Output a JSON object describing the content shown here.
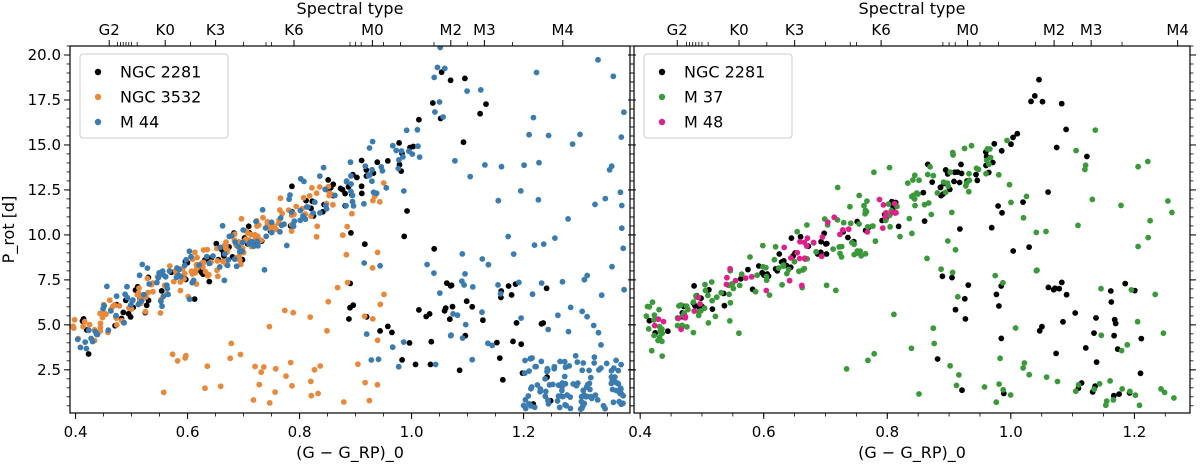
{
  "chart_data": [
    {
      "type": "scatter",
      "panel": "left",
      "xlabel": "(G − G_RP)_0",
      "ylabel": "P_rot [d]",
      "top_axis_label": "Spectral type",
      "xlim": [
        0.39,
        1.39
      ],
      "ylim": [
        0.1,
        20.5
      ],
      "x_ticks": [
        "0.4",
        "0.6",
        "0.8",
        "1.0",
        "1.2"
      ],
      "y_ticks": [
        "2.5",
        "5.0",
        "7.5",
        "10.0",
        "12.5",
        "15.0",
        "17.5",
        "20.0"
      ],
      "spectral_ticks": [
        {
          "label": "G2",
          "x": 0.46
        },
        {
          "label": "K0",
          "x": 0.56
        },
        {
          "label": "K3",
          "x": 0.65
        },
        {
          "label": "K6",
          "x": 0.79
        },
        {
          "label": "M0",
          "x": 0.93
        },
        {
          "label": "M2",
          "x": 1.07
        },
        {
          "label": "M3",
          "x": 1.13
        },
        {
          "label": "M4",
          "x": 1.27
        }
      ],
      "spectral_minor": [
        0.475,
        0.48,
        0.485,
        0.49,
        0.495,
        0.5,
        0.51,
        0.605,
        0.7,
        0.74,
        0.75,
        0.89,
        0.9,
        0.91,
        0.95,
        0.98,
        1.04,
        1.1,
        1.18
      ],
      "legend": "top-left",
      "series": [
        {
          "name": "NGC 2281",
          "color": "#000000"
        },
        {
          "name": "NGC 3532",
          "color": "#e8883a"
        },
        {
          "name": "M 44",
          "color": "#3a7bb0"
        }
      ]
    },
    {
      "type": "scatter",
      "panel": "right",
      "xlabel": "(G − G_RP)_0",
      "ylabel": "",
      "top_axis_label": "Spectral type",
      "xlim": [
        0.39,
        1.29
      ],
      "ylim": [
        0.1,
        20.5
      ],
      "x_ticks": [
        "0.4",
        "0.6",
        "0.8",
        "1.0",
        "1.2"
      ],
      "y_ticks": [
        "2.5",
        "5.0",
        "7.5",
        "10.0",
        "12.5",
        "15.0",
        "17.5",
        "20.0"
      ],
      "spectral_ticks": [
        {
          "label": "G2",
          "x": 0.46
        },
        {
          "label": "K0",
          "x": 0.56
        },
        {
          "label": "K3",
          "x": 0.65
        },
        {
          "label": "K6",
          "x": 0.79
        },
        {
          "label": "M0",
          "x": 0.93
        },
        {
          "label": "M2",
          "x": 1.07
        },
        {
          "label": "M3",
          "x": 1.13
        },
        {
          "label": "M4",
          "x": 1.27
        }
      ],
      "spectral_minor": [
        0.475,
        0.48,
        0.485,
        0.49,
        0.495,
        0.5,
        0.51,
        0.605,
        0.7,
        0.74,
        0.75,
        0.89,
        0.9,
        0.91,
        0.95,
        0.98,
        1.04,
        1.1,
        1.18
      ],
      "legend": "top-left",
      "series": [
        {
          "name": "NGC 2281",
          "color": "#000000"
        },
        {
          "name": "M 37",
          "color": "#3a9a3a"
        },
        {
          "name": "M 48",
          "color": "#e0208a"
        }
      ]
    }
  ]
}
